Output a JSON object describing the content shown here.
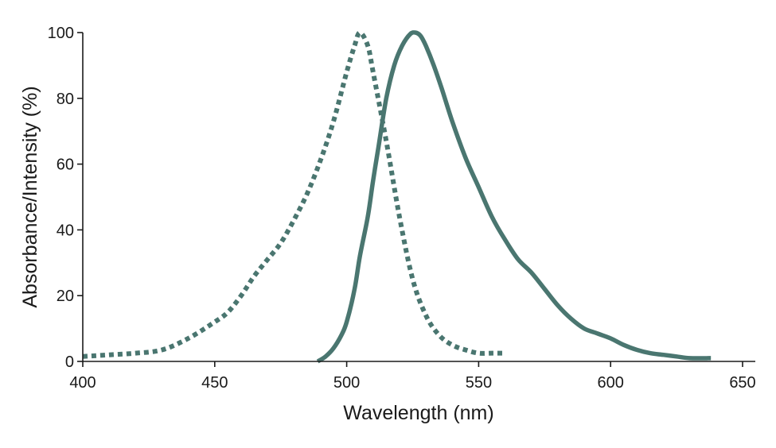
{
  "chart_data": {
    "type": "line",
    "xlabel": "Wavelength (nm)",
    "ylabel": "Absorbance/Intensity (%)",
    "xlim": [
      400,
      650
    ],
    "ylim": [
      0,
      100
    ],
    "x_ticks": [
      400,
      450,
      500,
      550,
      600,
      650
    ],
    "y_ticks": [
      0,
      20,
      40,
      60,
      80,
      100
    ],
    "x_tick_labels": [
      "400",
      "450",
      "500",
      "550",
      "600",
      "650"
    ],
    "y_tick_labels": [
      "0",
      "20",
      "40",
      "60",
      "80",
      "100"
    ],
    "grid": false,
    "series": [
      {
        "style": "dotted",
        "color": "#4a7670",
        "points": [
          [
            400,
            1.5
          ],
          [
            410,
            2
          ],
          [
            420,
            2.5
          ],
          [
            430,
            3.5
          ],
          [
            440,
            7
          ],
          [
            450,
            12
          ],
          [
            455,
            15
          ],
          [
            460,
            20
          ],
          [
            465,
            26
          ],
          [
            470,
            31
          ],
          [
            475,
            36
          ],
          [
            480,
            43
          ],
          [
            485,
            51
          ],
          [
            490,
            61
          ],
          [
            495,
            73
          ],
          [
            500,
            88
          ],
          [
            503,
            96
          ],
          [
            505,
            100
          ],
          [
            508,
            96
          ],
          [
            510,
            88
          ],
          [
            515,
            67
          ],
          [
            520,
            44
          ],
          [
            525,
            25
          ],
          [
            530,
            14
          ],
          [
            535,
            8
          ],
          [
            540,
            5
          ],
          [
            545,
            3.5
          ],
          [
            550,
            2.5
          ],
          [
            555,
            2.5
          ],
          [
            559,
            2.5
          ]
        ]
      },
      {
        "style": "solid",
        "color": "#4a7670",
        "points": [
          [
            489,
            0
          ],
          [
            492,
            1.5
          ],
          [
            495,
            4
          ],
          [
            498,
            8
          ],
          [
            500,
            12
          ],
          [
            503,
            22
          ],
          [
            505,
            32
          ],
          [
            508,
            44
          ],
          [
            510,
            55
          ],
          [
            512,
            65
          ],
          [
            515,
            80
          ],
          [
            518,
            90
          ],
          [
            521,
            96
          ],
          [
            524,
            99.5
          ],
          [
            526,
            100
          ],
          [
            528,
            99
          ],
          [
            530,
            96
          ],
          [
            533,
            90
          ],
          [
            536,
            83
          ],
          [
            540,
            73
          ],
          [
            545,
            62
          ],
          [
            550,
            53
          ],
          [
            555,
            44
          ],
          [
            560,
            37
          ],
          [
            565,
            31
          ],
          [
            570,
            27
          ],
          [
            575,
            22
          ],
          [
            580,
            17
          ],
          [
            585,
            13
          ],
          [
            590,
            10
          ],
          [
            595,
            8.5
          ],
          [
            600,
            7
          ],
          [
            605,
            5
          ],
          [
            610,
            3.5
          ],
          [
            615,
            2.5
          ],
          [
            620,
            2
          ],
          [
            625,
            1.5
          ],
          [
            630,
            1
          ],
          [
            638,
            1
          ]
        ]
      }
    ]
  }
}
